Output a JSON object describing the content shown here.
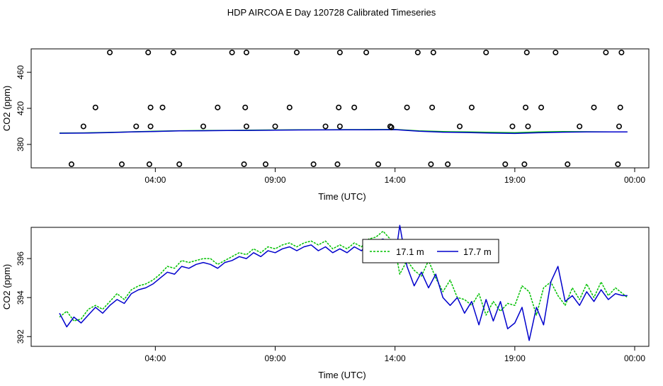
{
  "title": "HDP AIRCOA E  Day 120728  Calibrated Timeseries",
  "colors": {
    "green": "#00c000",
    "blue": "#0000cc",
    "axis": "#000000"
  },
  "chart_data": [
    {
      "type": "scatter",
      "xlabel": "Time (UTC)",
      "ylabel": "CO2 (ppm)",
      "xlim": [
        0.0,
        24.0
      ],
      "ylim": [
        354,
        486
      ],
      "grid": false,
      "xticks": [
        {
          "x": 4.0,
          "label": "04:00"
        },
        {
          "x": 9.0,
          "label": "09:00"
        },
        {
          "x": 14.0,
          "label": "14:00"
        },
        {
          "x": 19.0,
          "label": "19:00"
        },
        {
          "x": 24.0,
          "label": "00:00"
        }
      ],
      "yticks": [
        {
          "y": 380,
          "label": "380"
        },
        {
          "y": 420,
          "label": "420"
        },
        {
          "y": 460,
          "label": "460"
        }
      ],
      "series": [
        {
          "name": "",
          "style": "line",
          "color": "green",
          "x": [
            0.0,
            1.0,
            2.0,
            3.0,
            4.0,
            5.0,
            6.0,
            7.0,
            8.0,
            9.0,
            10.0,
            11.0,
            12.0,
            13.0,
            14.0,
            15.0,
            16.0,
            17.0,
            18.0,
            19.0,
            20.0,
            21.0,
            22.0,
            23.0,
            23.7
          ],
          "y": [
            392.6,
            392.8,
            393.3,
            394.0,
            394.6,
            395.2,
            395.4,
            395.6,
            395.8,
            396.0,
            396.2,
            396.3,
            396.4,
            396.5,
            396.6,
            395.0,
            394.2,
            393.8,
            393.4,
            393.0,
            393.8,
            394.2,
            394.1,
            393.9,
            393.9
          ]
        },
        {
          "name": "",
          "style": "line",
          "color": "blue",
          "x": [
            0.0,
            1.0,
            2.0,
            3.0,
            4.0,
            5.0,
            6.0,
            7.0,
            8.0,
            9.0,
            10.0,
            11.0,
            12.0,
            13.0,
            14.0,
            15.0,
            16.0,
            17.0,
            18.0,
            19.0,
            20.0,
            21.0,
            22.0,
            23.0,
            23.7
          ],
          "y": [
            392.4,
            392.6,
            393.1,
            393.8,
            394.4,
            395.0,
            395.2,
            395.4,
            395.6,
            395.8,
            396.0,
            396.1,
            396.2,
            396.3,
            396.4,
            394.6,
            393.6,
            393.2,
            392.6,
            392.2,
            393.0,
            393.6,
            393.8,
            393.8,
            393.8
          ]
        },
        {
          "name": "",
          "style": "points",
          "color": "black",
          "x": [
            0.5,
            1.0,
            1.5,
            2.1,
            2.6,
            3.2,
            3.7,
            3.75,
            3.8,
            3.8,
            4.3,
            4.75,
            5.0,
            6.0,
            6.6,
            7.2,
            7.7,
            7.75,
            7.8,
            7.8,
            8.6,
            9.0,
            9.6,
            9.9,
            10.6,
            11.1,
            11.6,
            11.65,
            11.7,
            11.7,
            12.3,
            12.8,
            13.3,
            13.8,
            13.85,
            14.5,
            14.95,
            15.5,
            15.55,
            15.6,
            16.2,
            16.7,
            17.2,
            17.8,
            18.6,
            18.9,
            19.4,
            19.45,
            19.5,
            19.55,
            20.1,
            20.7,
            21.2,
            21.7,
            22.3,
            22.8,
            23.3,
            23.35,
            23.4,
            23.45
          ],
          "y": [
            358,
            400,
            421,
            482,
            358,
            400,
            482,
            358,
            421,
            400,
            421,
            482,
            358,
            400,
            421,
            482,
            358,
            421,
            482,
            400,
            358,
            400,
            421,
            482,
            358,
            400,
            358,
            421,
            482,
            400,
            421,
            482,
            358,
            400,
            399,
            421,
            482,
            358,
            421,
            482,
            358,
            400,
            421,
            482,
            358,
            400,
            358,
            421,
            482,
            400,
            421,
            482,
            358,
            400,
            421,
            482,
            358,
            400,
            421,
            482
          ]
        }
      ]
    },
    {
      "type": "line",
      "xlabel": "Time (UTC)",
      "ylabel": "CO2 (ppm)",
      "xlim": [
        0.0,
        24.0
      ],
      "ylim": [
        391.5,
        397.6
      ],
      "grid": false,
      "legend_placement": "top-center",
      "xticks": [
        {
          "x": 4.0,
          "label": "04:00"
        },
        {
          "x": 9.0,
          "label": "09:00"
        },
        {
          "x": 14.0,
          "label": "14:00"
        },
        {
          "x": 19.0,
          "label": "19:00"
        },
        {
          "x": 24.0,
          "label": "00:00"
        }
      ],
      "yticks": [
        {
          "y": 392,
          "label": "392"
        },
        {
          "y": 394,
          "label": "394"
        },
        {
          "y": 396,
          "label": "396"
        }
      ],
      "series": [
        {
          "name": "17.1 m",
          "color": "green",
          "x": [
            0.0,
            0.3,
            0.6,
            0.9,
            1.2,
            1.5,
            1.8,
            2.1,
            2.4,
            2.7,
            3.0,
            3.3,
            3.6,
            3.9,
            4.2,
            4.5,
            4.8,
            5.1,
            5.4,
            5.7,
            6.0,
            6.3,
            6.6,
            6.9,
            7.2,
            7.5,
            7.8,
            8.1,
            8.4,
            8.7,
            9.0,
            9.3,
            9.6,
            9.9,
            10.2,
            10.5,
            10.8,
            11.1,
            11.4,
            11.7,
            12.0,
            12.3,
            12.6,
            12.9,
            13.2,
            13.5,
            13.8,
            14.0,
            14.2,
            14.5,
            14.8,
            15.1,
            15.4,
            15.7,
            16.0,
            16.3,
            16.6,
            16.9,
            17.2,
            17.5,
            17.8,
            18.1,
            18.4,
            18.7,
            19.0,
            19.3,
            19.6,
            19.9,
            20.2,
            20.5,
            20.8,
            21.1,
            21.4,
            21.7,
            22.0,
            22.3,
            22.6,
            22.9,
            23.2,
            23.5,
            23.7
          ],
          "y": [
            393.0,
            393.3,
            392.8,
            392.9,
            393.4,
            393.6,
            393.4,
            393.8,
            394.2,
            393.9,
            394.4,
            394.6,
            394.7,
            394.9,
            395.2,
            395.6,
            395.5,
            395.9,
            395.8,
            395.9,
            396.0,
            396.0,
            395.7,
            395.9,
            396.1,
            396.3,
            396.2,
            396.5,
            396.3,
            396.6,
            396.5,
            396.7,
            396.8,
            396.6,
            396.8,
            396.9,
            396.7,
            396.9,
            396.5,
            396.7,
            396.5,
            396.8,
            396.6,
            397.0,
            397.1,
            397.4,
            397.0,
            396.5,
            395.2,
            395.9,
            395.4,
            395.1,
            395.9,
            395.0,
            394.3,
            394.9,
            394.0,
            393.9,
            393.6,
            394.2,
            393.1,
            393.8,
            393.3,
            393.7,
            393.6,
            394.6,
            394.3,
            393.1,
            394.5,
            394.8,
            394.1,
            393.6,
            394.5,
            393.9,
            394.7,
            394.0,
            394.8,
            394.1,
            394.5,
            394.2,
            394.0
          ]
        },
        {
          "name": "17.7 m",
          "color": "blue",
          "x": [
            0.0,
            0.3,
            0.6,
            0.9,
            1.2,
            1.5,
            1.8,
            2.1,
            2.4,
            2.7,
            3.0,
            3.3,
            3.6,
            3.9,
            4.2,
            4.5,
            4.8,
            5.1,
            5.4,
            5.7,
            6.0,
            6.3,
            6.6,
            6.9,
            7.2,
            7.5,
            7.8,
            8.1,
            8.4,
            8.7,
            9.0,
            9.3,
            9.6,
            9.9,
            10.2,
            10.5,
            10.8,
            11.1,
            11.4,
            11.7,
            12.0,
            12.3,
            12.6,
            12.9,
            13.2,
            13.5,
            13.8,
            14.0,
            14.2,
            14.5,
            14.8,
            15.1,
            15.4,
            15.7,
            16.0,
            16.3,
            16.6,
            16.9,
            17.2,
            17.5,
            17.8,
            18.1,
            18.4,
            18.7,
            19.0,
            19.3,
            19.6,
            19.9,
            20.2,
            20.5,
            20.8,
            21.1,
            21.4,
            21.7,
            22.0,
            22.3,
            22.6,
            22.9,
            23.2,
            23.5,
            23.7
          ],
          "y": [
            393.2,
            392.5,
            393.0,
            392.7,
            393.1,
            393.5,
            393.2,
            393.6,
            393.9,
            393.7,
            394.2,
            394.4,
            394.5,
            394.7,
            395.0,
            395.3,
            395.2,
            395.6,
            395.5,
            395.7,
            395.8,
            395.7,
            395.5,
            395.8,
            395.9,
            396.1,
            396.0,
            396.3,
            396.1,
            396.4,
            396.3,
            396.5,
            396.6,
            396.4,
            396.6,
            396.7,
            396.4,
            396.6,
            396.3,
            396.5,
            396.3,
            396.6,
            396.4,
            396.8,
            396.9,
            397.0,
            396.7,
            396.0,
            397.7,
            395.6,
            394.6,
            395.3,
            394.5,
            395.2,
            394.0,
            393.6,
            394.0,
            393.2,
            393.8,
            392.6,
            393.9,
            392.8,
            393.8,
            392.4,
            392.7,
            393.5,
            391.8,
            393.5,
            392.6,
            394.8,
            395.6,
            393.8,
            394.1,
            393.6,
            394.3,
            393.8,
            394.4,
            393.9,
            394.2,
            394.1,
            394.1
          ]
        }
      ]
    }
  ]
}
